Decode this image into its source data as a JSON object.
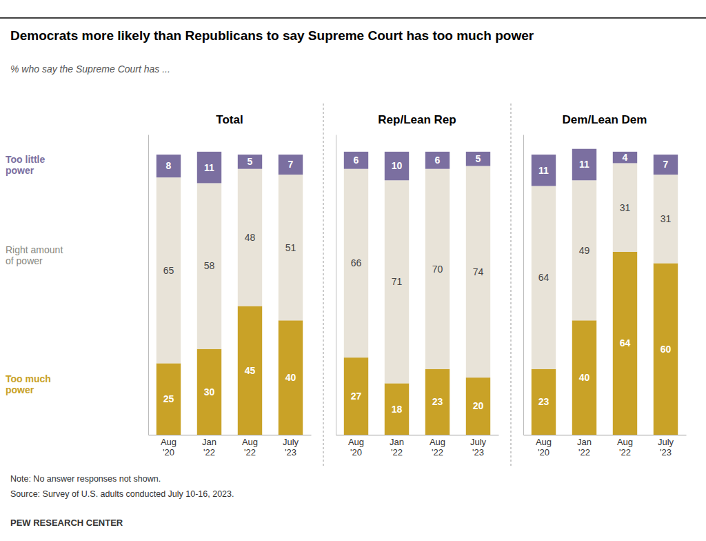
{
  "title": "Democrats more likely than Republicans to say Supreme Court has too much power",
  "subtitle": "% who say the Supreme Court has ...",
  "notes": [
    "Note: No answer responses not shown.",
    "Source: Survey of U.S. adults conducted July 10-16, 2023."
  ],
  "source": "PEW RESEARCH CENTER",
  "chart_data": [
    {
      "type": "bar",
      "stacked": true,
      "data_labels": true,
      "tick_labels": "x",
      "title": "Total",
      "categories": [
        "Aug\n'20",
        "Jan\n'22",
        "Aug\n'22",
        "July\n'23"
      ],
      "ylim": [
        0,
        105
      ],
      "series": [
        {
          "name": "Too much\npower",
          "color": "#C9A227",
          "values": [
            25,
            30,
            45,
            40
          ]
        },
        {
          "name": "Right amount\nof power",
          "color": "#E8E3D8",
          "values": [
            65,
            58,
            48,
            51
          ]
        },
        {
          "name": "Too little\npower",
          "color": "#7B6FA0",
          "values": [
            8,
            11,
            5,
            7
          ]
        }
      ]
    },
    {
      "type": "bar",
      "stacked": true,
      "data_labels": true,
      "tick_labels": "x",
      "title": "Rep/Lean Rep",
      "categories": [
        "Aug\n'20",
        "Jan\n'22",
        "Aug\n'22",
        "July\n'23"
      ],
      "ylim": [
        0,
        105
      ],
      "series": [
        {
          "color": "#C9A227",
          "values": [
            27,
            18,
            23,
            20
          ]
        },
        {
          "color": "#E8E3D8",
          "values": [
            66,
            71,
            70,
            74
          ]
        },
        {
          "color": "#7B6FA0",
          "values": [
            6,
            10,
            6,
            5
          ]
        }
      ]
    },
    {
      "type": "bar",
      "stacked": true,
      "data_labels": true,
      "tick_labels": "x",
      "title": "Dem/Lean Dem",
      "categories": [
        "Aug\n'20",
        "Jan\n'22",
        "Aug\n'22",
        "July\n'23"
      ],
      "ylim": [
        0,
        105
      ],
      "series": [
        {
          "color": "#C9A227",
          "values": [
            23,
            40,
            64,
            60
          ]
        },
        {
          "color": "#E8E3D8",
          "values": [
            64,
            49,
            31,
            31
          ]
        },
        {
          "color": "#7B6FA0",
          "values": [
            11,
            11,
            4,
            7
          ]
        }
      ]
    }
  ]
}
